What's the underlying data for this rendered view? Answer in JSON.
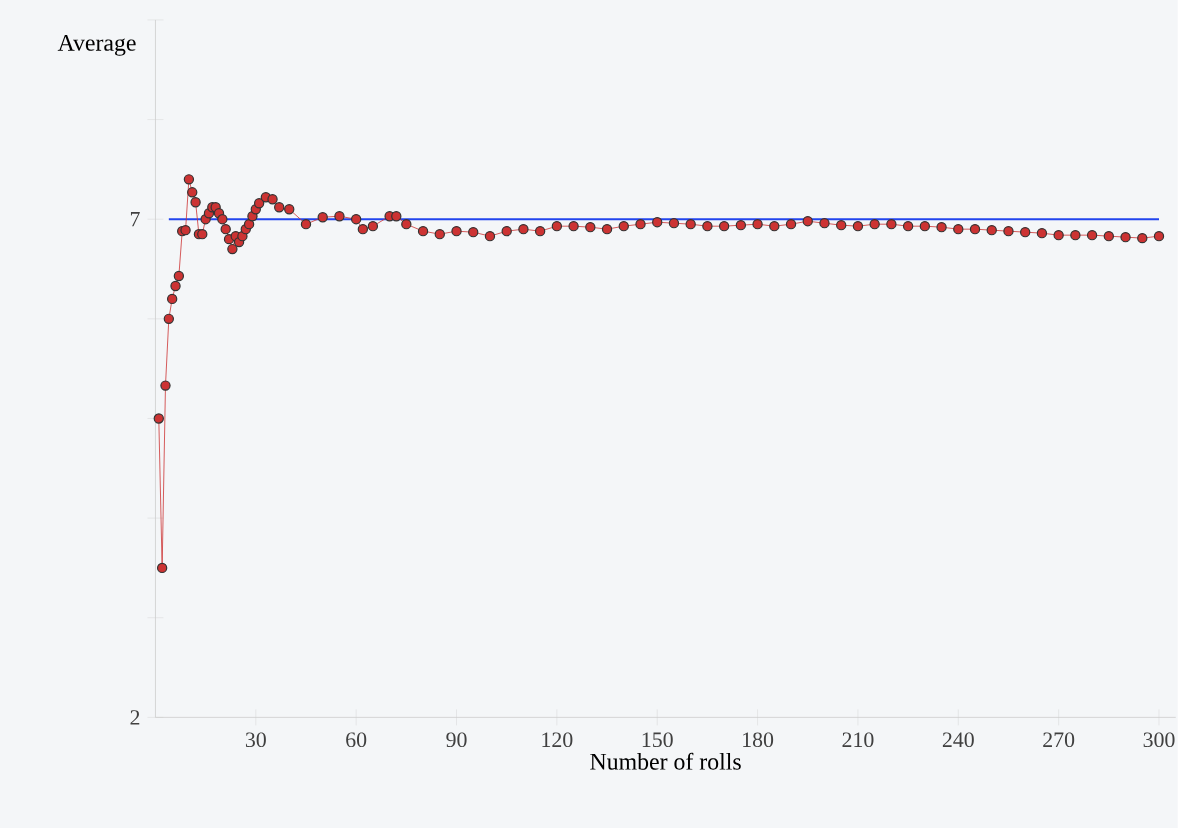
{
  "chart_data": {
    "type": "line",
    "xlabel": "Number of rolls",
    "ylabel": "Average",
    "x": [
      1,
      2,
      3,
      4,
      5,
      6,
      7,
      8,
      9,
      10,
      11,
      12,
      13,
      14,
      15,
      16,
      17,
      18,
      19,
      20,
      21,
      22,
      23,
      24,
      25,
      26,
      27,
      28,
      29,
      30,
      31,
      33,
      35,
      37,
      40,
      45,
      50,
      55,
      60,
      62,
      65,
      70,
      72,
      75,
      80,
      85,
      90,
      95,
      100,
      105,
      110,
      115,
      120,
      125,
      130,
      135,
      140,
      145,
      150,
      155,
      160,
      165,
      170,
      175,
      180,
      185,
      190,
      195,
      200,
      205,
      210,
      215,
      220,
      225,
      230,
      235,
      240,
      245,
      250,
      255,
      260,
      265,
      270,
      275,
      280,
      285,
      290,
      295,
      300
    ],
    "series": [
      {
        "color": "#cc3333",
        "values": [
          5.0,
          3.5,
          5.33,
          6.0,
          6.2,
          6.33,
          6.43,
          6.88,
          6.89,
          7.4,
          7.27,
          7.17,
          6.85,
          6.85,
          7.0,
          7.06,
          7.12,
          7.12,
          7.06,
          7.0,
          6.9,
          6.8,
          6.7,
          6.83,
          6.77,
          6.83,
          6.9,
          6.95,
          7.03,
          7.1,
          7.16,
          7.22,
          7.2,
          7.12,
          7.1,
          6.95,
          7.02,
          7.03,
          7.0,
          6.9,
          6.93,
          7.03,
          7.03,
          6.95,
          6.88,
          6.85,
          6.88,
          6.87,
          6.83,
          6.88,
          6.9,
          6.88,
          6.93,
          6.93,
          6.92,
          6.9,
          6.93,
          6.95,
          6.97,
          6.96,
          6.95,
          6.93,
          6.93,
          6.94,
          6.95,
          6.93,
          6.95,
          6.98,
          6.96,
          6.94,
          6.93,
          6.95,
          6.95,
          6.93,
          6.93,
          6.92,
          6.9,
          6.9,
          6.89,
          6.88,
          6.87,
          6.86,
          6.84,
          6.84,
          6.84,
          6.83,
          6.82,
          6.81,
          6.83
        ]
      }
    ],
    "marker": "circle",
    "line_style": "solid",
    "xlim": [
      0,
      305
    ],
    "xticks": [
      30,
      60,
      90,
      120,
      150,
      180,
      210,
      240,
      270,
      300
    ],
    "ylim": [
      2,
      9
    ],
    "yticks": [
      2,
      {
        "value": 3,
        "label": null
      },
      {
        "value": 4,
        "label": null
      },
      {
        "value": 5,
        "label": null
      },
      {
        "value": 6,
        "label": null
      },
      7,
      {
        "value": 8,
        "label": null
      },
      {
        "value": 9,
        "label": null
      }
    ],
    "ref_lines": [
      {
        "axis": "y",
        "value": 7,
        "color": "#2244ee"
      }
    ]
  }
}
